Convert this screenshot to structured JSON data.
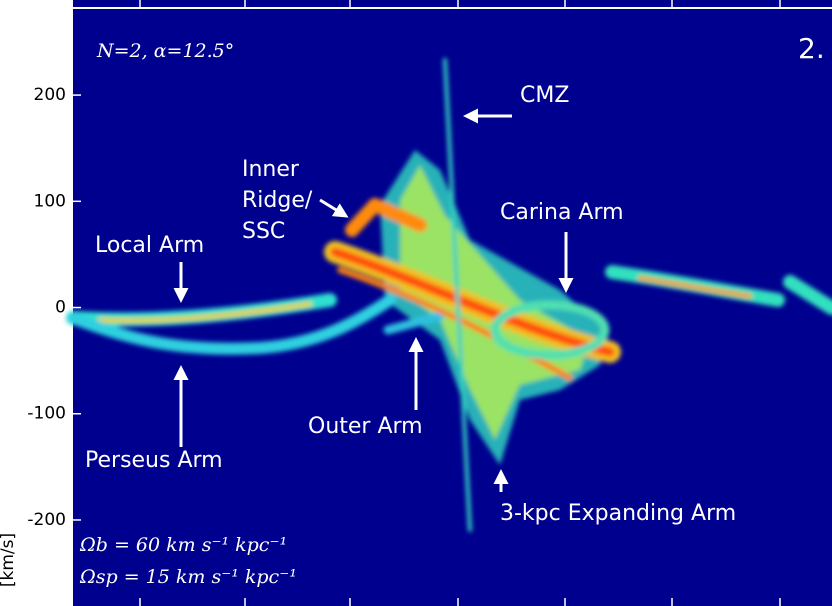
{
  "chart_data": {
    "type": "lv-diagram",
    "title": "2.",
    "subtitle": "N=2, α=12.5°",
    "ylabel": "[km/s]",
    "ylim": [
      -281,
      282
    ],
    "yticks": [
      -200,
      -100,
      0,
      100,
      200
    ],
    "annotations": [
      "CMZ",
      "Inner",
      "Ridge/",
      "SSC",
      "Local Arm",
      "Carina Arm",
      "Outer Arm",
      "Perseus Arm",
      "3-kpc Expanding Arm",
      "Ωb = 60 km s⁻¹ kpc⁻¹",
      "Ωsp = 15 km s⁻¹ kpc⁻¹"
    ]
  }
}
